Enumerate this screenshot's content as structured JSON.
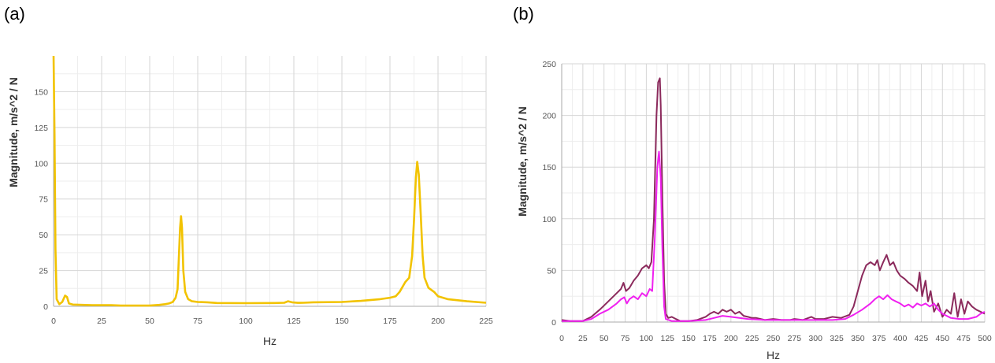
{
  "labels": {
    "a": "(a)",
    "b": "(b)"
  },
  "chart_data": [
    {
      "type": "line",
      "xlabel": "Hz",
      "ylabel": "Magnitude, m/s^2 / N",
      "xlim": [
        0,
        225
      ],
      "ylim": [
        0,
        175
      ],
      "xticks": [
        0,
        25,
        50,
        75,
        100,
        125,
        150,
        175,
        200,
        225
      ],
      "yticks": [
        0,
        25,
        50,
        75,
        100,
        125,
        150
      ],
      "grid": true,
      "series": [
        {
          "color": "#F2C300",
          "points": [
            [
              0,
              175
            ],
            [
              0.5,
              120
            ],
            [
              1,
              40
            ],
            [
              1.6,
              5
            ],
            [
              3,
              1.5
            ],
            [
              4.5,
              3
            ],
            [
              6,
              7.5
            ],
            [
              7,
              6.5
            ],
            [
              8,
              2
            ],
            [
              10,
              1.2
            ],
            [
              20,
              0.8
            ],
            [
              30,
              0.8
            ],
            [
              35,
              0.5
            ],
            [
              50,
              0.5
            ],
            [
              55,
              1
            ],
            [
              58,
              1.5
            ],
            [
              60,
              2
            ],
            [
              62,
              3
            ],
            [
              63.5,
              6
            ],
            [
              64.5,
              12
            ],
            [
              65.2,
              35
            ],
            [
              65.8,
              55
            ],
            [
              66.3,
              63
            ],
            [
              66.8,
              55
            ],
            [
              67.5,
              25
            ],
            [
              68.5,
              10
            ],
            [
              70,
              5
            ],
            [
              72,
              3.5
            ],
            [
              75,
              3
            ],
            [
              80,
              2.8
            ],
            [
              85,
              2.3
            ],
            [
              100,
              2.2
            ],
            [
              115,
              2.3
            ],
            [
              120,
              2.5
            ],
            [
              122,
              3.5
            ],
            [
              124,
              2.8
            ],
            [
              127,
              2.4
            ],
            [
              130,
              2.5
            ],
            [
              135,
              2.8
            ],
            [
              150,
              3
            ],
            [
              160,
              3.8
            ],
            [
              170,
              5
            ],
            [
              175,
              6
            ],
            [
              178,
              7
            ],
            [
              180,
              10
            ],
            [
              183,
              17
            ],
            [
              185,
              20
            ],
            [
              186.5,
              35
            ],
            [
              187.5,
              60
            ],
            [
              188.5,
              90
            ],
            [
              189.2,
              101
            ],
            [
              190,
              92
            ],
            [
              191,
              65
            ],
            [
              192,
              35
            ],
            [
              193,
              20
            ],
            [
              195,
              13
            ],
            [
              198,
              10
            ],
            [
              200,
              7
            ],
            [
              205,
              5
            ],
            [
              215,
              3.5
            ],
            [
              225,
              2.5
            ]
          ]
        }
      ]
    },
    {
      "type": "line",
      "xlabel": "Hz",
      "ylabel": "Magnitude, m/s^2 / N",
      "xlim": [
        0,
        500
      ],
      "ylim": [
        0,
        250
      ],
      "xticks": [
        0,
        25,
        50,
        75,
        100,
        125,
        150,
        175,
        200,
        225,
        250,
        275,
        300,
        325,
        350,
        375,
        400,
        425,
        450,
        475,
        500
      ],
      "yticks": [
        0,
        50,
        100,
        150,
        200,
        250
      ],
      "grid": true,
      "series": [
        {
          "color": "#8B2A5C",
          "points": [
            [
              0,
              2
            ],
            [
              10,
              1
            ],
            [
              25,
              1
            ],
            [
              35,
              5
            ],
            [
              45,
              12
            ],
            [
              55,
              20
            ],
            [
              65,
              28
            ],
            [
              70,
              32
            ],
            [
              73,
              38
            ],
            [
              76,
              30
            ],
            [
              80,
              33
            ],
            [
              85,
              40
            ],
            [
              90,
              45
            ],
            [
              95,
              52
            ],
            [
              100,
              55
            ],
            [
              103,
              52
            ],
            [
              106,
              58
            ],
            [
              109,
              100
            ],
            [
              112,
              200
            ],
            [
              114,
              232
            ],
            [
              116,
              236
            ],
            [
              117,
              210
            ],
            [
              119,
              120
            ],
            [
              121,
              40
            ],
            [
              123,
              8
            ],
            [
              126,
              4
            ],
            [
              130,
              5
            ],
            [
              135,
              3
            ],
            [
              140,
              1
            ],
            [
              150,
              1
            ],
            [
              160,
              2
            ],
            [
              170,
              5
            ],
            [
              175,
              8
            ],
            [
              180,
              10
            ],
            [
              185,
              8
            ],
            [
              190,
              12
            ],
            [
              195,
              10
            ],
            [
              200,
              12
            ],
            [
              205,
              8
            ],
            [
              210,
              10
            ],
            [
              215,
              6
            ],
            [
              220,
              5
            ],
            [
              225,
              4
            ],
            [
              230,
              4
            ],
            [
              240,
              2
            ],
            [
              250,
              3
            ],
            [
              260,
              2
            ],
            [
              270,
              2
            ],
            [
              275,
              3
            ],
            [
              285,
              2
            ],
            [
              295,
              5
            ],
            [
              300,
              3
            ],
            [
              310,
              3
            ],
            [
              320,
              5
            ],
            [
              330,
              4
            ],
            [
              340,
              7
            ],
            [
              345,
              15
            ],
            [
              350,
              30
            ],
            [
              355,
              45
            ],
            [
              360,
              55
            ],
            [
              365,
              58
            ],
            [
              370,
              55
            ],
            [
              373,
              60
            ],
            [
              376,
              50
            ],
            [
              380,
              58
            ],
            [
              384,
              65
            ],
            [
              388,
              55
            ],
            [
              392,
              58
            ],
            [
              396,
              50
            ],
            [
              400,
              45
            ],
            [
              405,
              42
            ],
            [
              410,
              38
            ],
            [
              415,
              35
            ],
            [
              420,
              30
            ],
            [
              423,
              48
            ],
            [
              426,
              25
            ],
            [
              430,
              40
            ],
            [
              433,
              20
            ],
            [
              436,
              30
            ],
            [
              440,
              10
            ],
            [
              445,
              18
            ],
            [
              450,
              5
            ],
            [
              455,
              12
            ],
            [
              460,
              8
            ],
            [
              464,
              28
            ],
            [
              468,
              5
            ],
            [
              472,
              22
            ],
            [
              476,
              8
            ],
            [
              480,
              20
            ],
            [
              485,
              15
            ],
            [
              490,
              12
            ],
            [
              495,
              10
            ],
            [
              500,
              8
            ]
          ]
        },
        {
          "color": "#F020F0",
          "points": [
            [
              0,
              1
            ],
            [
              25,
              1
            ],
            [
              35,
              3
            ],
            [
              45,
              8
            ],
            [
              55,
              12
            ],
            [
              65,
              18
            ],
            [
              70,
              22
            ],
            [
              74,
              24
            ],
            [
              77,
              18
            ],
            [
              80,
              22
            ],
            [
              85,
              25
            ],
            [
              90,
              22
            ],
            [
              95,
              28
            ],
            [
              100,
              25
            ],
            [
              104,
              32
            ],
            [
              107,
              30
            ],
            [
              110,
              80
            ],
            [
              113,
              150
            ],
            [
              115,
              165
            ],
            [
              117,
              140
            ],
            [
              119,
              70
            ],
            [
              121,
              15
            ],
            [
              123,
              3
            ],
            [
              130,
              1
            ],
            [
              150,
              1
            ],
            [
              170,
              2
            ],
            [
              180,
              4
            ],
            [
              190,
              6
            ],
            [
              200,
              5
            ],
            [
              210,
              4
            ],
            [
              220,
              3
            ],
            [
              240,
              2
            ],
            [
              260,
              2
            ],
            [
              280,
              2
            ],
            [
              300,
              2
            ],
            [
              320,
              2
            ],
            [
              335,
              3
            ],
            [
              345,
              7
            ],
            [
              355,
              12
            ],
            [
              365,
              18
            ],
            [
              370,
              22
            ],
            [
              375,
              25
            ],
            [
              380,
              22
            ],
            [
              385,
              26
            ],
            [
              390,
              22
            ],
            [
              395,
              20
            ],
            [
              400,
              18
            ],
            [
              405,
              15
            ],
            [
              410,
              17
            ],
            [
              415,
              14
            ],
            [
              420,
              18
            ],
            [
              425,
              16
            ],
            [
              430,
              18
            ],
            [
              435,
              15
            ],
            [
              440,
              18
            ],
            [
              445,
              12
            ],
            [
              450,
              8
            ],
            [
              455,
              6
            ],
            [
              460,
              4
            ],
            [
              470,
              3
            ],
            [
              480,
              3
            ],
            [
              490,
              5
            ],
            [
              495,
              8
            ],
            [
              500,
              10
            ]
          ]
        }
      ]
    }
  ]
}
